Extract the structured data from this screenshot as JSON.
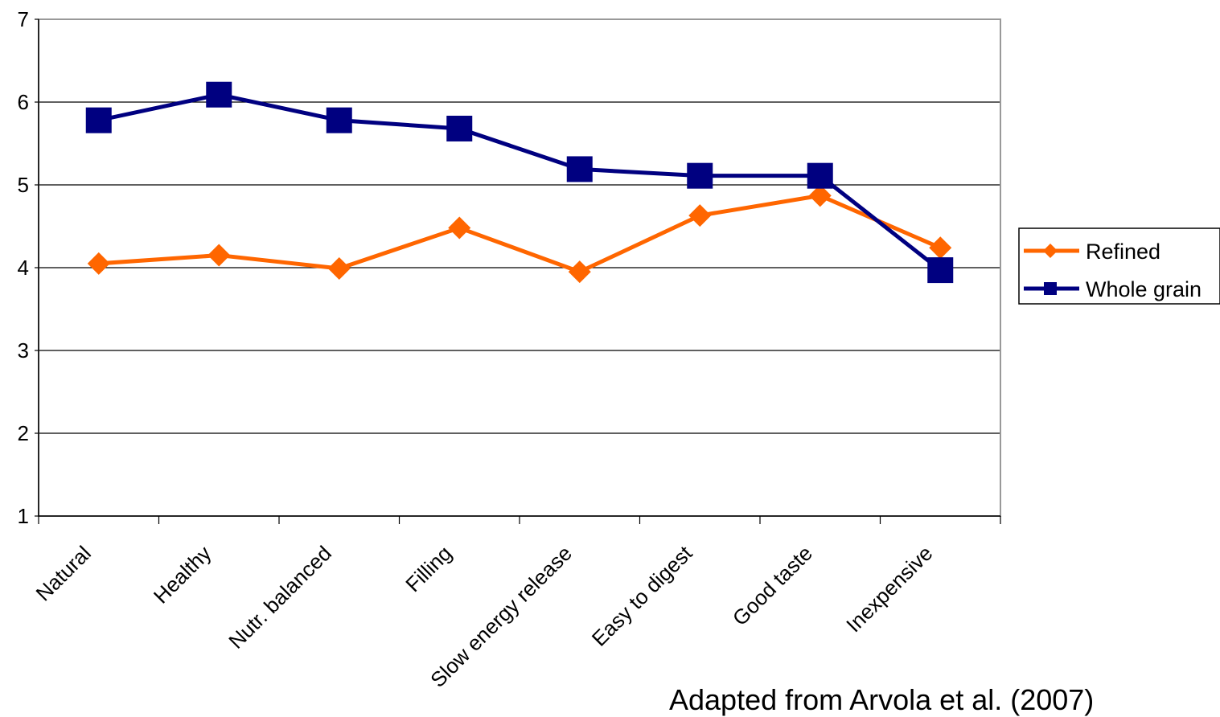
{
  "chart_data": {
    "type": "line",
    "categories": [
      "Natural",
      "Healthy",
      "Nutr. balanced",
      "Filling",
      "Slow energy release",
      "Easy to digest",
      "Good taste",
      "Inexpensive"
    ],
    "series": [
      {
        "name": "Refined",
        "color": "#FF6600",
        "marker": "diamond",
        "values": [
          4.05,
          4.15,
          3.99,
          4.48,
          3.95,
          4.63,
          4.87,
          4.24
        ]
      },
      {
        "name": "Whole grain",
        "color": "#000080",
        "marker": "square",
        "values": [
          5.78,
          6.09,
          5.78,
          5.68,
          5.19,
          5.11,
          5.11,
          3.97
        ]
      }
    ],
    "yticks": [
      "1",
      "2",
      "3",
      "4",
      "5",
      "6",
      "7"
    ],
    "ylim": [
      1,
      7
    ],
    "grid": true,
    "legend": "right"
  },
  "source_note": "Adapted from Arvola et al. (2007)"
}
